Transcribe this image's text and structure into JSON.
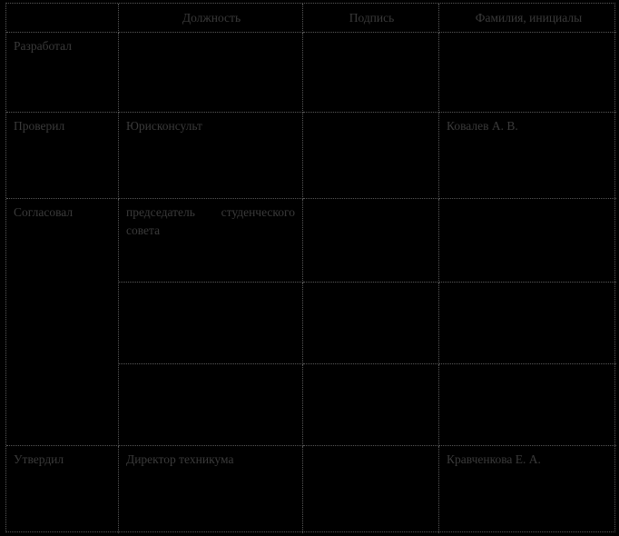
{
  "table": {
    "headers": {
      "role": "",
      "position": "Должность",
      "signature": "Подпись",
      "name": "Фамилия, инициалы"
    },
    "rows": [
      {
        "role": "Разработал",
        "position": "",
        "signature": "",
        "name": ""
      },
      {
        "role": "Проверил",
        "position": "Юрисконсульт",
        "signature": "",
        "name": "Ковалев А. В."
      },
      {
        "role": "Согласовал",
        "position": "председатель студенческого совета",
        "signature": "",
        "name": ""
      },
      {
        "role": "",
        "position": "",
        "signature": "",
        "name": ""
      },
      {
        "role": "",
        "position": "",
        "signature": "",
        "name": ""
      },
      {
        "role": "Утвердил",
        "position": "Директор техникума",
        "signature": "",
        "name": "Кравченкова Е. А."
      }
    ]
  },
  "colors": {
    "background": "#000000",
    "grid_border": "#585858",
    "text": "#3a3a3a"
  }
}
